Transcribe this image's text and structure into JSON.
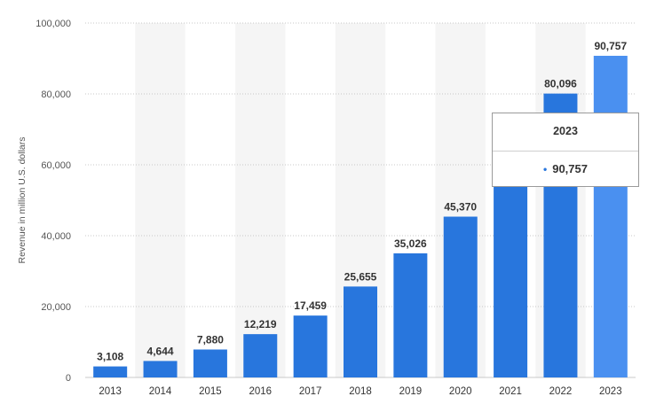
{
  "chart_data": {
    "type": "bar",
    "categories": [
      "2013",
      "2014",
      "2015",
      "2016",
      "2017",
      "2018",
      "2019",
      "2020",
      "2021",
      "2022",
      "2023"
    ],
    "values": [
      3108,
      4644,
      7880,
      12219,
      17459,
      25655,
      35026,
      45370,
      61270,
      80096,
      90757
    ],
    "data_labels": [
      "3,108",
      "4,644",
      "7,880",
      "12,219",
      "17,459",
      "25,655",
      "35,026",
      "45,370",
      "",
      "80,096",
      "90,757"
    ],
    "ylabel": "Revenue in million U.S. dollars",
    "xlabel": "",
    "ylim": [
      0,
      100000
    ],
    "y_ticks": [
      0,
      20000,
      40000,
      60000,
      80000,
      100000
    ],
    "y_tick_labels": [
      "0",
      "20,000",
      "40,000",
      "60,000",
      "80,000",
      "100,000"
    ],
    "grid": true,
    "highlighted_category": "2023",
    "colors": {
      "bar": "#2876dd",
      "bar_highlight": "#4a90f0",
      "band": "#f5f5f5",
      "grid": "#c8c8c8"
    }
  },
  "tooltip": {
    "title": "2023",
    "value": "90,757",
    "bullet": "•"
  }
}
